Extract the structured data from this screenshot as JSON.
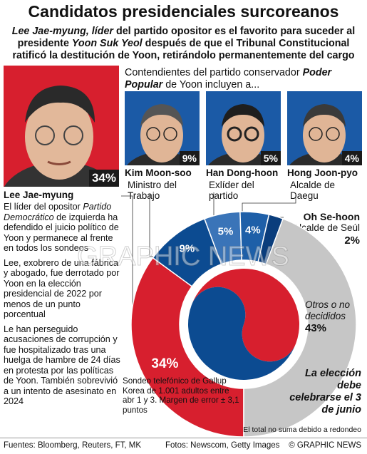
{
  "title": "Candidatos presidenciales surcoreanos",
  "subtitle": [
    [
      "Lee Jae-myung, líder",
      " del partido opositor es el favorito para suceder al"
    ],
    [
      "presidente ",
      "Yoon Suk Yeol",
      " después de que el Tribunal Constitucional"
    ],
    [
      "ratificó la destitución de Yoon, retirándolo permanentemente del cargo"
    ]
  ],
  "intro": [
    "Contendientes del partido conservador ",
    "Poder Popular",
    " de Yoon incluyen a..."
  ],
  "bio": [
    [
      "El líder del opositor ",
      "Partido Democrático",
      " de izquierda ha defendido el juicio político de Yoon y permanece al frente en todos los sondeos"
    ],
    [
      "Lee, exobrero de una fábrica y abogado, fue derrotado por Yoon en la elección presidencial de 2022 por menos de un punto porcentual"
    ],
    [
      "Le han perseguido acusaciones de corrupción y fue hospitalizado tras una huelga de hambre de 24 días en protesta por las políticas de Yoon. También sobrevivió a un intento de asesinato en 2024"
    ]
  ],
  "roles": [
    "Ministro del Trabajo",
    "Exlíder del partido",
    "Alcalde de Daegu",
    "Alcalde de Seúl"
  ],
  "survey_note": "Sondeo telefónico de Gallup Korea de 1.001 adultos entre abr 1 y 3. Margen de error ± 3,1 puntos",
  "election_note": "La elección debe celebrarse el 3 de junio",
  "rounding_note": "El total no suma debido a redondeo",
  "watermark": "GRAPHIC NEWS",
  "footer": {
    "sources": "Fuentes: Bloomberg, Reuters, FT, MK",
    "photos": "Fotos: Newscom, Getty Images",
    "credit": "© GRAPHIC NEWS"
  },
  "chart_data": {
    "type": "pie",
    "donut": true,
    "categories": [
      "Lee Jae-myung",
      "Kim Moon-soo",
      "Han Dong-hoon",
      "Hong Joon-pyo",
      "Oh Se-hoon",
      "Otros o no decididos"
    ],
    "values": [
      34,
      9,
      5,
      4,
      2,
      43
    ],
    "value_labels": [
      "34%",
      "9%",
      "5%",
      "4%",
      "2%",
      "43%"
    ],
    "colors": [
      "#d71f2e",
      "#0c4b91",
      "#3a74b8",
      "#1e5fa8",
      "#0a3d7c",
      "#c6c6c6"
    ]
  }
}
